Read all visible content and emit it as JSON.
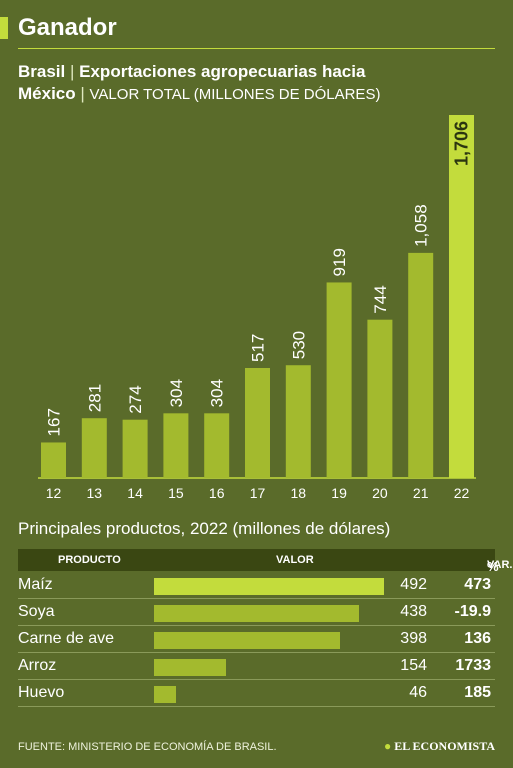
{
  "header": {
    "title": "Ganador",
    "subtitle_country": "Brasil",
    "subtitle_sep": "|",
    "subtitle_topic": "Exportaciones agropecuarias hacia",
    "subtitle_dest": "México",
    "subtitle_unit": "VALOR TOTAL  (MILLONES DE DÓLARES)"
  },
  "chart_data": {
    "type": "bar",
    "title": "Exportaciones agropecuarias hacia México",
    "ylabel": "VALOR TOTAL  (MILLONES DE DÓLARES)",
    "categories": [
      "12",
      "13",
      "14",
      "15",
      "16",
      "17",
      "18",
      "19",
      "20",
      "21",
      "22"
    ],
    "values": [
      167,
      281,
      274,
      304,
      304,
      517,
      530,
      919,
      744,
      1058,
      1706
    ],
    "labels": [
      "167",
      "281",
      "274",
      "304",
      "304",
      "517",
      "530",
      "919",
      "744",
      "1,058",
      "1,706"
    ],
    "highlight_index": 10,
    "colors": {
      "bar": "#a3ba2e",
      "highlight": "#c3dc3c",
      "highlight_label": "#2b3510"
    }
  },
  "products": {
    "title": "Principales productos, 2022 (millones de dólares)",
    "headers": {
      "product": "PRODUCTO",
      "value": "VALOR",
      "var": "VAR.",
      "var_pct": "%"
    },
    "rows": [
      {
        "name": "Maíz",
        "value": 492,
        "value_label": "492",
        "var": "473"
      },
      {
        "name": "Soya",
        "value": 438,
        "value_label": "438",
        "var": "-19.9"
      },
      {
        "name": "Carne de ave",
        "value": 398,
        "value_label": "398",
        "var": "136"
      },
      {
        "name": "Arroz",
        "value": 154,
        "value_label": "154",
        "var": "1733"
      },
      {
        "name": "Huevo",
        "value": 46,
        "value_label": "46",
        "var": "185"
      }
    ],
    "bar_max_value": 492,
    "colors": {
      "top_bar": "#c3dc3c",
      "bar": "#a3ba2e"
    }
  },
  "footer": {
    "source": "FUENTE: MINISTERIO DE ECONOMÍA DE BRASIL.",
    "brand_mark": "●",
    "brand": "EL ECONOMISTA"
  }
}
